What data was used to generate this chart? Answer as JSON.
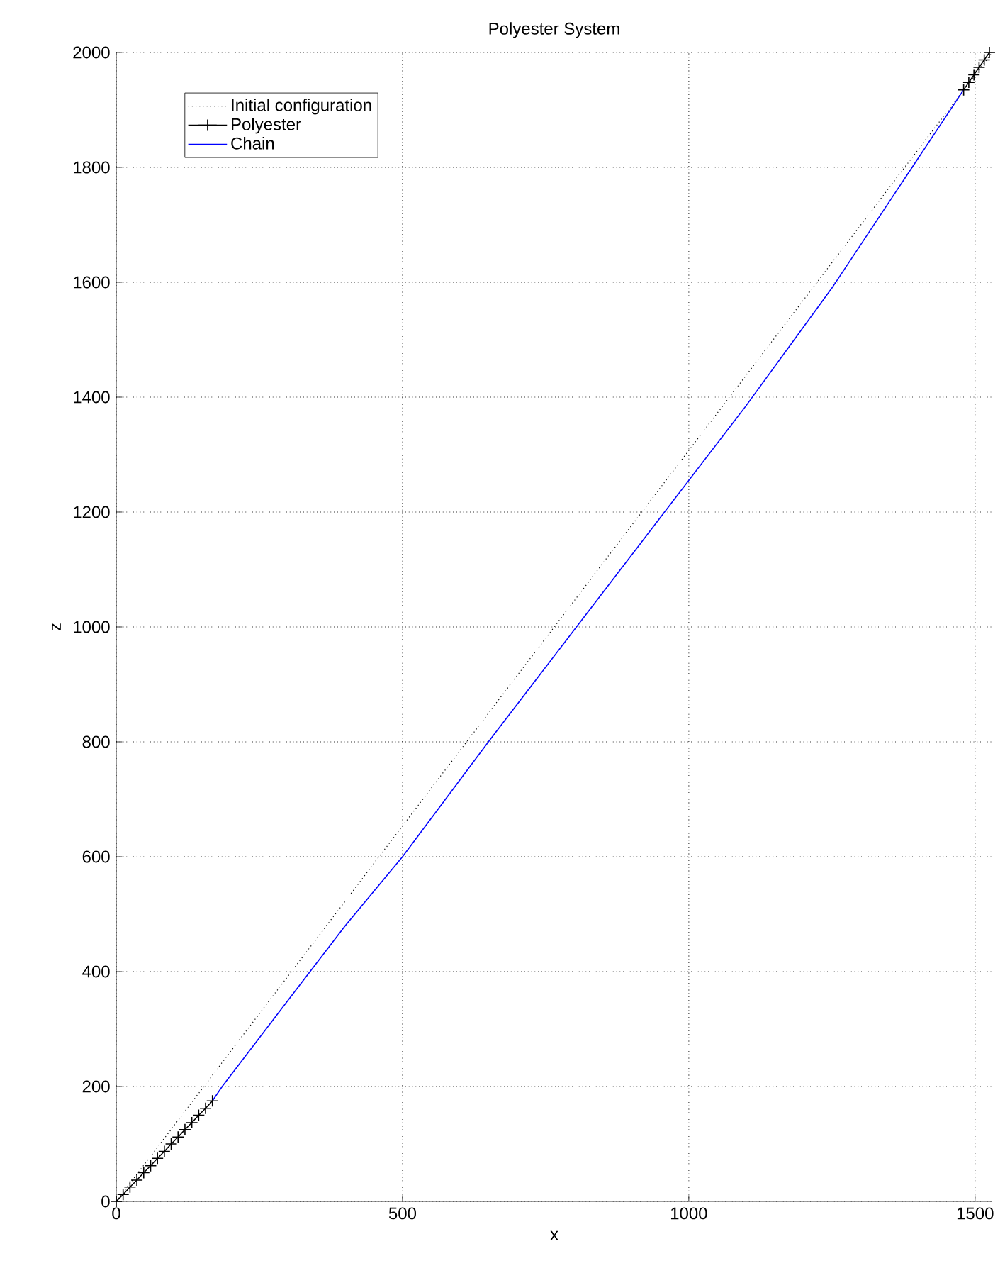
{
  "chart_data": {
    "type": "line",
    "title": "Polyester System",
    "xlabel": "x",
    "ylabel": "z",
    "xlim": [
      0,
      1530
    ],
    "ylim": [
      0,
      2000
    ],
    "xticks": [
      0,
      500,
      1000,
      1500
    ],
    "yticks": [
      0,
      200,
      400,
      600,
      800,
      1000,
      1200,
      1400,
      1600,
      1800,
      2000
    ],
    "grid": true,
    "legend": "top left",
    "series": [
      {
        "name": "Initial configuration",
        "color": "#000000",
        "line_style": "dotted",
        "x": [
          0,
          1530
        ],
        "values": [
          0,
          2000
        ]
      },
      {
        "name": "Polyester",
        "color": "#000000",
        "line_style": "solid",
        "marker": "cross",
        "x": [
          0,
          12,
          24,
          36,
          48,
          60,
          72,
          84,
          96,
          108,
          120,
          132,
          144,
          156,
          168,
          null,
          1480,
          1489,
          1498,
          1507,
          1516,
          1525
        ],
        "values": [
          0,
          12,
          25,
          37,
          50,
          62,
          75,
          87,
          100,
          112,
          125,
          137,
          150,
          162,
          175,
          null,
          1935,
          1948,
          1961,
          1974,
          1987,
          2000
        ]
      },
      {
        "name": "Chain",
        "color": "#0000ff",
        "line_style": "solid",
        "marker": "none",
        "x": [
          168,
          185,
          300,
          400,
          500,
          650,
          800,
          950,
          1100,
          1250,
          1390,
          1480
        ],
        "values": [
          175,
          200,
          350,
          480,
          600,
          800,
          995,
          1190,
          1385,
          1590,
          1800,
          1935
        ]
      }
    ]
  }
}
